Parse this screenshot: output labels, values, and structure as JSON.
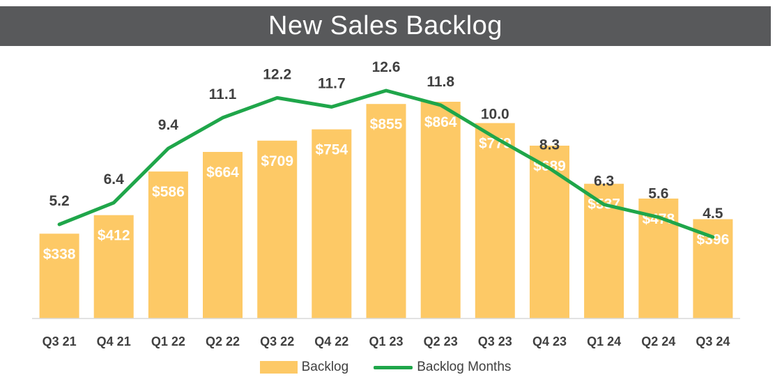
{
  "colors": {
    "title_bg": "#58595b",
    "bar": "#fdc966",
    "line": "#1fa64a",
    "text": "#404040"
  },
  "chart_data": {
    "type": "bar",
    "title": "New Sales Backlog",
    "categories": [
      "Q3 21",
      "Q4 21",
      "Q1 22",
      "Q2 22",
      "Q3 22",
      "Q4 22",
      "Q1 23",
      "Q2 23",
      "Q3 23",
      "Q4 23",
      "Q1 24",
      "Q2 24",
      "Q3 24"
    ],
    "series": [
      {
        "name": "Backlog",
        "type": "bar",
        "values": [
          338,
          412,
          586,
          664,
          709,
          754,
          855,
          864,
          779,
          689,
          537,
          478,
          396
        ],
        "labels": [
          "$338",
          "$412",
          "$586",
          "$664",
          "$709",
          "$754",
          "$855",
          "$864",
          "$779",
          "$689",
          "$537",
          "$478",
          "$396"
        ]
      },
      {
        "name": "Backlog Months",
        "type": "line",
        "values": [
          5.2,
          6.4,
          9.4,
          11.1,
          12.2,
          11.7,
          12.6,
          11.8,
          10.0,
          8.3,
          6.3,
          5.6,
          4.5
        ],
        "labels": [
          "5.2",
          "6.4",
          "9.4",
          "11.1",
          "12.2",
          "11.7",
          "12.6",
          "11.8",
          "10.0",
          "8.3",
          "6.3",
          "5.6",
          "4.5"
        ]
      }
    ],
    "bar_ylim": [
      0,
      1000
    ],
    "line_ylim": [
      0,
      14.5
    ],
    "grid": false,
    "legend_position": "bottom"
  }
}
